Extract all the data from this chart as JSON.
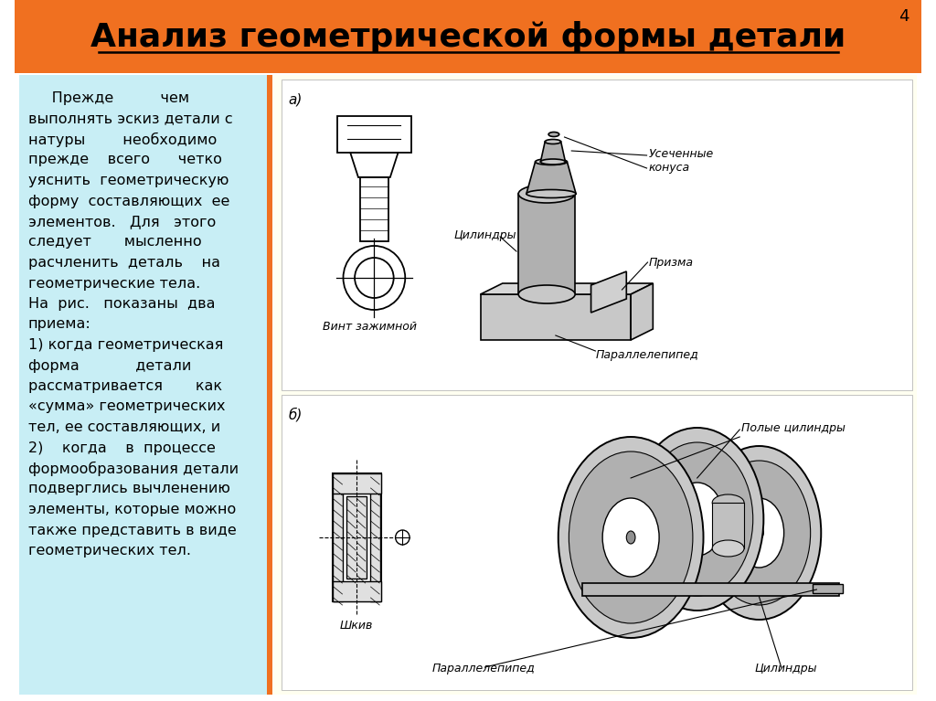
{
  "title": "Анализ геометрической формы детали",
  "title_bg_color": "#F07020",
  "title_text_color": "#000000",
  "page_number": "4",
  "bg_color": "#FFFFFF",
  "left_panel_bg": "#C8EEF5",
  "right_panel_bg": "#FFFFF0",
  "orange_sep_color": "#F07020",
  "body_text_lines": [
    "     Прежде          чем",
    "выполнять эскиз детали с",
    "натуры        необходимо",
    "прежде    всего      четко",
    "уяснить  геометрическую",
    "форму  составляющих  ее",
    "элементов.   Для   этого",
    "следует       мысленно",
    "расчленить  деталь    на",
    "геометрические тела.",
    "На  рис.   показаны  два",
    "приема:",
    "1) когда геометрическая",
    "форма            детали",
    "рассматривается       как",
    "«сумма» геометрических",
    "тел, ее составляющих, и",
    "2)    когда    в  процессе",
    "формообразования детали",
    "подверглись вычленению",
    "элементы, которые можно",
    "также представить в виде",
    "геометрических тел."
  ],
  "label_a": "а)",
  "label_b": "б)",
  "label_vint": "Винт зажимной",
  "label_shkiv": "Шкив",
  "label_tsil_a": "Цилиндры",
  "label_usech": "Усеченные\nконуса",
  "label_prizma": "Призма",
  "label_parall_a": "Параллелепипед",
  "label_poly_tsil": "Полые цилиндры",
  "label_parall_b": "Параллелепипед",
  "label_tsil_b": "Цилиндры",
  "font_size_title": 26,
  "font_size_body": 11.5,
  "font_size_label": 9
}
